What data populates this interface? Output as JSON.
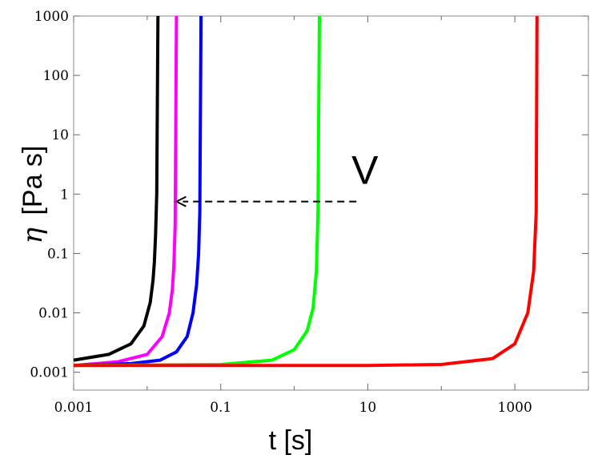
{
  "chart_data": {
    "type": "line",
    "title": "",
    "xlabel": "t [s]",
    "ylabel_symbol": "η",
    "ylabel_unit": "[Pa s]",
    "x_scale": "log",
    "y_scale": "log",
    "xlim": [
      0.001,
      10000
    ],
    "ylim": [
      0.0005,
      1000
    ],
    "x_ticks": [
      0.001,
      0.1,
      10,
      1000
    ],
    "x_tick_labels": [
      "0.001",
      "0.1",
      "10",
      "1000"
    ],
    "y_ticks": [
      0.001,
      0.01,
      0.1,
      1,
      10,
      100,
      1000
    ],
    "y_tick_labels": [
      "0.001",
      "0.01",
      "0.1",
      "1",
      "10",
      "100",
      "1000"
    ],
    "grid": false,
    "legend": "none",
    "annotation": {
      "text": "V",
      "arrow_from": [
        7,
        0.75
      ],
      "arrow_to": [
        0.025,
        0.75
      ],
      "arrow_style": "dashed"
    },
    "series": [
      {
        "color": "#000000",
        "x": [
          0.001,
          0.003,
          0.006,
          0.009,
          0.011,
          0.012,
          0.0125,
          0.013,
          0.0135,
          0.014
        ],
        "y": [
          0.0016,
          0.002,
          0.003,
          0.006,
          0.015,
          0.035,
          0.07,
          0.2,
          1,
          1000
        ]
      },
      {
        "color": "#ff00ff",
        "x": [
          0.001,
          0.004,
          0.01,
          0.016,
          0.02,
          0.022,
          0.023,
          0.024,
          0.025
        ],
        "y": [
          0.0013,
          0.0015,
          0.002,
          0.004,
          0.01,
          0.025,
          0.06,
          0.3,
          1000
        ]
      },
      {
        "color": "#0000ff",
        "x": [
          0.001,
          0.006,
          0.015,
          0.025,
          0.035,
          0.042,
          0.047,
          0.05,
          0.052,
          0.054
        ],
        "y": [
          0.0013,
          0.0014,
          0.0016,
          0.0022,
          0.004,
          0.01,
          0.03,
          0.1,
          0.5,
          1000
        ]
      },
      {
        "color": "#00ff00",
        "x": [
          0.001,
          0.1,
          0.5,
          1,
          1.5,
          1.8,
          2,
          2.1,
          2.2
        ],
        "y": [
          0.0013,
          0.00135,
          0.0016,
          0.0024,
          0.005,
          0.012,
          0.05,
          0.5,
          1000
        ]
      },
      {
        "color": "#ff0000",
        "x": [
          0.001,
          10,
          100,
          500,
          1000,
          1500,
          1800,
          1950,
          2000
        ],
        "y": [
          0.0013,
          0.0013,
          0.00135,
          0.0017,
          0.003,
          0.01,
          0.05,
          0.5,
          1000
        ]
      }
    ]
  }
}
